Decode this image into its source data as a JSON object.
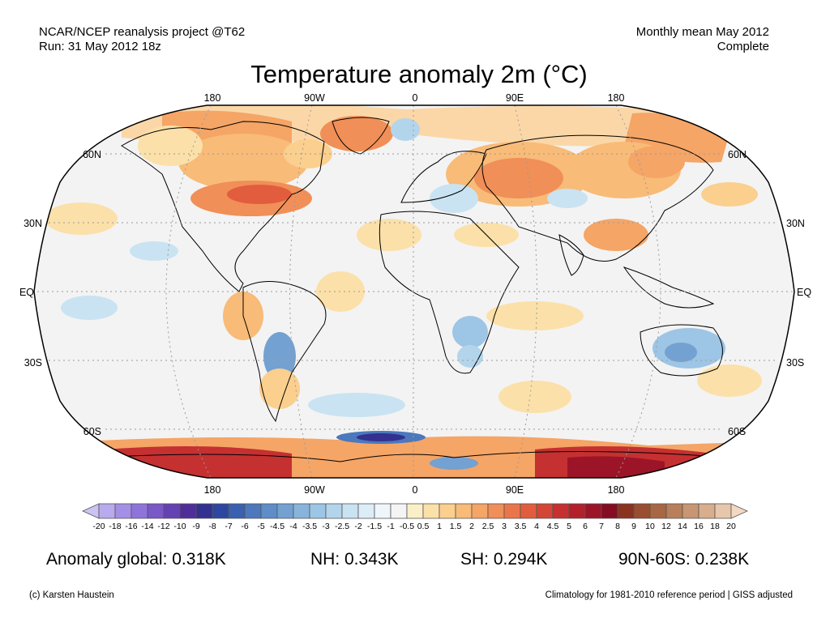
{
  "header": {
    "source_line1": "NCAR/NCEP reanalysis project @T62",
    "source_line2": "Run: 31 May 2012 18z",
    "period_line1": "Monthly mean May 2012",
    "period_line2": "Complete"
  },
  "title": "Temperature anomaly 2m (°C)",
  "map": {
    "projection": "Robinson",
    "lon_labels": [
      "180",
      "90W",
      "0",
      "90E",
      "180"
    ],
    "lat_labels": [
      "60N",
      "30N",
      "EQ",
      "30S",
      "60S"
    ]
  },
  "colorbar": {
    "labels": [
      "-20",
      "-18",
      "-16",
      "-14",
      "-12",
      "-10",
      "-9",
      "-8",
      "-7",
      "-6",
      "-5",
      "-4.5",
      "-4",
      "-3.5",
      "-3",
      "-2.5",
      "-2",
      "-1.5",
      "-1",
      "-0.5",
      "0.5",
      "1",
      "1.5",
      "2",
      "2.5",
      "3",
      "3.5",
      "4",
      "4.5",
      "5",
      "6",
      "7",
      "8",
      "9",
      "10",
      "12",
      "14",
      "16",
      "18",
      "20"
    ],
    "colors": [
      "#cdc3f3",
      "#b9aaee",
      "#a48fe6",
      "#8e74da",
      "#7958c8",
      "#6542b2",
      "#4f2e9a",
      "#33308f",
      "#2d47a0",
      "#3a60b0",
      "#4c78bd",
      "#5e8dc8",
      "#73a1d2",
      "#88b4dc",
      "#9dc5e5",
      "#b3d5ec",
      "#c9e3f2",
      "#dcedf7",
      "#eef6fb",
      "#f4f4f4",
      "#fbefc8",
      "#fbe0a9",
      "#fbcf8e",
      "#f8bb78",
      "#f5a566",
      "#f08f57",
      "#e9764a",
      "#e15d3e",
      "#d44536",
      "#c53031",
      "#b3202c",
      "#9c1428",
      "#840d22",
      "#8a3420",
      "#9a4e30",
      "#a86743",
      "#b87f5a",
      "#c89672",
      "#d8ae8d",
      "#e8c6ab",
      "#f2d8c3"
    ]
  },
  "stats": {
    "global": "Anomaly global: 0.318K",
    "nh": "NH: 0.343K",
    "sh": "SH: 0.294K",
    "polar": "90N-60S: 0.238K"
  },
  "footer": {
    "credit": "(c) Karsten Haustein",
    "note": "Climatology for 1981-2010 reference period | GISS adjusted"
  }
}
